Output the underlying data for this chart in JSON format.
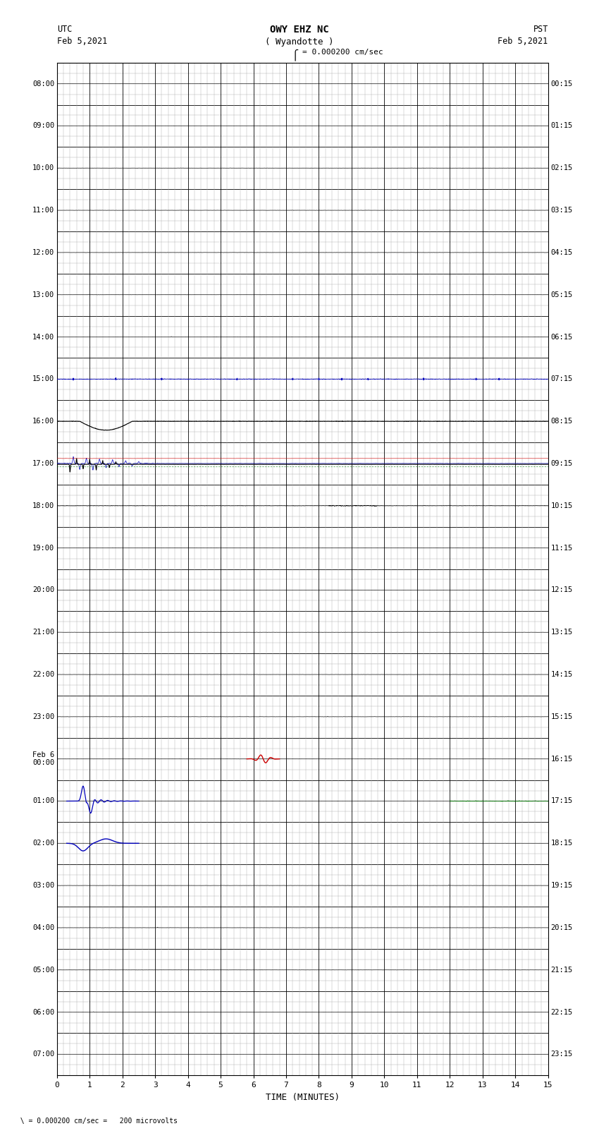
{
  "title_line1": "OWY EHZ NC",
  "title_line2": "( Wyandotte )",
  "scale_text": "I = 0.000200 cm/sec",
  "xlabel": "TIME (MINUTES)",
  "left_labels": [
    "08:00",
    "09:00",
    "10:00",
    "11:00",
    "12:00",
    "13:00",
    "14:00",
    "15:00",
    "16:00",
    "17:00",
    "18:00",
    "19:00",
    "20:00",
    "21:00",
    "22:00",
    "23:00",
    "Feb 6\n00:00",
    "01:00",
    "02:00",
    "03:00",
    "04:00",
    "05:00",
    "06:00",
    "07:00"
  ],
  "right_labels": [
    "00:15",
    "01:15",
    "02:15",
    "03:15",
    "04:15",
    "05:15",
    "06:15",
    "07:15",
    "08:15",
    "09:15",
    "10:15",
    "11:15",
    "12:15",
    "13:15",
    "14:15",
    "15:15",
    "16:15",
    "17:15",
    "18:15",
    "19:15",
    "20:15",
    "21:15",
    "22:15",
    "23:15"
  ],
  "n_rows": 24,
  "x_min": 0,
  "x_max": 15,
  "bg_color": "#ffffff",
  "major_grid_color": "#000000",
  "minor_grid_color": "#aaaaaa",
  "seismo_color_black": "#000000",
  "seismo_color_blue": "#0000bb",
  "seismo_color_red": "#cc0000",
  "seismo_color_green": "#007700",
  "footer_text": "\\  = 0.000200 cm/sec =   200 microvolts"
}
